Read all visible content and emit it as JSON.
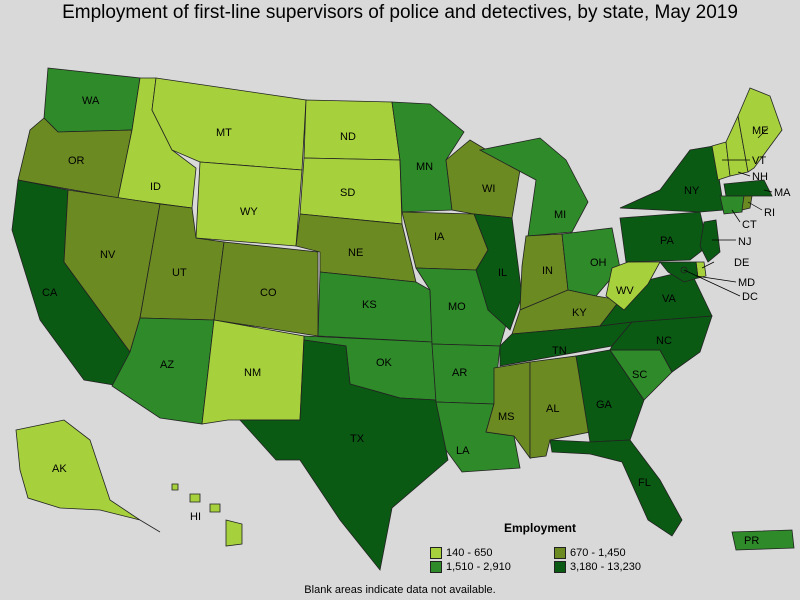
{
  "title": "Employment of first-line supervisors of police and detectives, by state, May 2019",
  "colors": {
    "c1": "#a6d13c",
    "c2": "#2f8a2a",
    "c3": "#6b8a22",
    "c4": "#0b5a14",
    "bg": "#d9d9d9"
  },
  "legend": {
    "title": "Employment",
    "items": [
      {
        "label": "140 - 650",
        "color": "c1"
      },
      {
        "label": "670 - 1,450",
        "color": "c3"
      },
      {
        "label": "1,510 - 2,910",
        "color": "c2"
      },
      {
        "label": "3,180 - 13,230",
        "color": "c4"
      }
    ]
  },
  "footnote": "Blank areas indicate data not available.",
  "states": {
    "WA": "c2",
    "OR": "c3",
    "CA": "c4",
    "ID": "c1",
    "MT": "c1",
    "WY": "c1",
    "NV": "c3",
    "UT": "c3",
    "AZ": "c2",
    "CO": "c3",
    "NM": "c1",
    "ND": "c1",
    "SD": "c1",
    "NE": "c3",
    "KS": "c2",
    "OK": "c2",
    "TX": "c4",
    "MN": "c2",
    "IA": "c3",
    "MO": "c2",
    "AR": "c2",
    "LA": "c2",
    "WI": "c3",
    "IL": "c4",
    "MI": "c2",
    "IN": "c3",
    "OH": "c2",
    "KY": "c3",
    "TN": "c4",
    "MS": "c3",
    "AL": "c3",
    "GA": "c4",
    "FL": "c4",
    "SC": "c2",
    "NC": "c4",
    "VA": "c4",
    "WV": "c1",
    "PA": "c4",
    "NY": "c4",
    "ME": "c1",
    "VT": "c1",
    "NH": "c1",
    "MA": "c4",
    "RI": "c3",
    "CT": "c2",
    "NJ": "c4",
    "DE": "c1",
    "MD": "c4",
    "DC": "c4",
    "AK": "c1",
    "HI": "c1",
    "PR": "c2"
  },
  "labels": {
    "WA": "WA",
    "OR": "OR",
    "CA": "CA",
    "ID": "ID",
    "MT": "MT",
    "WY": "WY",
    "NV": "NV",
    "UT": "UT",
    "AZ": "AZ",
    "CO": "CO",
    "NM": "NM",
    "ND": "ND",
    "SD": "SD",
    "NE": "NE",
    "KS": "KS",
    "OK": "OK",
    "TX": "TX",
    "MN": "MN",
    "IA": "IA",
    "MO": "MO",
    "AR": "AR",
    "LA": "LA",
    "WI": "WI",
    "IL": "IL",
    "MI": "MI",
    "IN": "IN",
    "OH": "OH",
    "KY": "KY",
    "TN": "TN",
    "MS": "MS",
    "AL": "AL",
    "GA": "GA",
    "FL": "FL",
    "SC": "SC",
    "NC": "NC",
    "VA": "VA",
    "WV": "WV",
    "PA": "PA",
    "NY": "NY",
    "ME": "ME",
    "VT": "VT",
    "NH": "NH",
    "MA": "MA",
    "RI": "RI",
    "CT": "CT",
    "NJ": "NJ",
    "DE": "DE",
    "MD": "MD",
    "DC": "DC",
    "AK": "AK",
    "HI": "HI",
    "PR": "PR"
  }
}
